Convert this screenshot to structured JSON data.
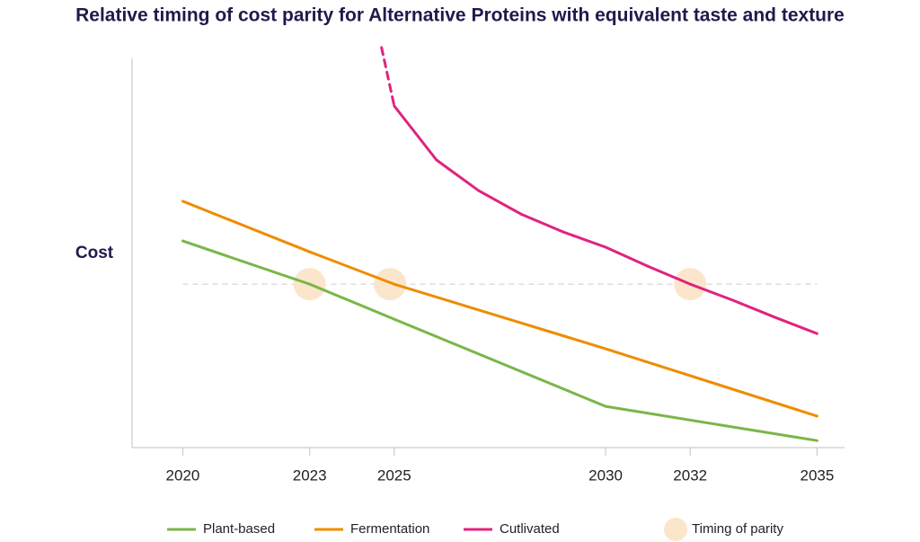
{
  "chart_data": {
    "type": "line",
    "title": "Relative timing of cost parity for Alternative Proteins with equivalent taste and texture",
    "y_label": "Cost",
    "xlim": [
      2018.8,
      2035.65
    ],
    "xticks": [
      2020,
      2023,
      2025,
      2030,
      2032,
      2035
    ],
    "ylim": [
      0,
      103
    ],
    "series": [
      {
        "name": "Plant-based",
        "color": "#7ab648",
        "x": [
          2020,
          2023,
          2025,
          2030,
          2035
        ],
        "values": [
          53.1,
          42,
          33,
          10.6,
          1.8
        ]
      },
      {
        "name": "Fermentation",
        "color": "#ee8c00",
        "x": [
          2020,
          2023,
          2025,
          2030,
          2035
        ],
        "values": [
          63.3,
          50.3,
          42,
          25.4,
          8.1
        ]
      },
      {
        "name": "Cutlivated",
        "color": "#e0237e",
        "x": [
          2024.7,
          2025,
          2026,
          2027,
          2028,
          2029,
          2030,
          2031,
          2032,
          2033,
          2034,
          2035
        ],
        "values": [
          102.8,
          87.8,
          73.9,
          66,
          60,
          55.4,
          51.5,
          46.6,
          42,
          37.9,
          33.5,
          29.3
        ],
        "dashed_segments": [
          0
        ]
      }
    ],
    "parity": {
      "name": "Timing of parity",
      "color": "#fbe6cc",
      "x": [
        2023,
        2024.9,
        2032
      ],
      "values": [
        42,
        42,
        42
      ],
      "line_x": [
        2020,
        2035
      ]
    }
  }
}
